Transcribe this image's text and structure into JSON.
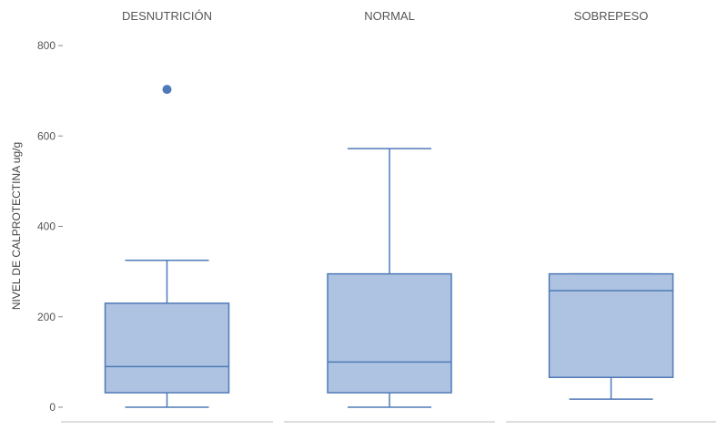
{
  "chart_data": {
    "type": "boxplot",
    "ylabel": "NIVEL DE CALPROTECTINA ug/g",
    "ylim": [
      0,
      800
    ],
    "yticks": [
      0,
      200,
      400,
      600,
      800
    ],
    "grid": false,
    "color": "#4f7ab8",
    "fill": "#aec3e1",
    "series": [
      {
        "name": "DESNUTRICIÓN",
        "whisker_low": 0,
        "q1": 32,
        "median": 90,
        "q3": 230,
        "whisker_high": 325,
        "outliers": [
          703
        ]
      },
      {
        "name": "NORMAL",
        "whisker_low": 0,
        "q1": 32,
        "median": 100,
        "q3": 295,
        "whisker_high": 572,
        "outliers": []
      },
      {
        "name": "SOBREPESO",
        "whisker_low": 18,
        "q1": 66,
        "median": 258,
        "q3": 295,
        "whisker_high": 295,
        "outliers": []
      }
    ]
  }
}
